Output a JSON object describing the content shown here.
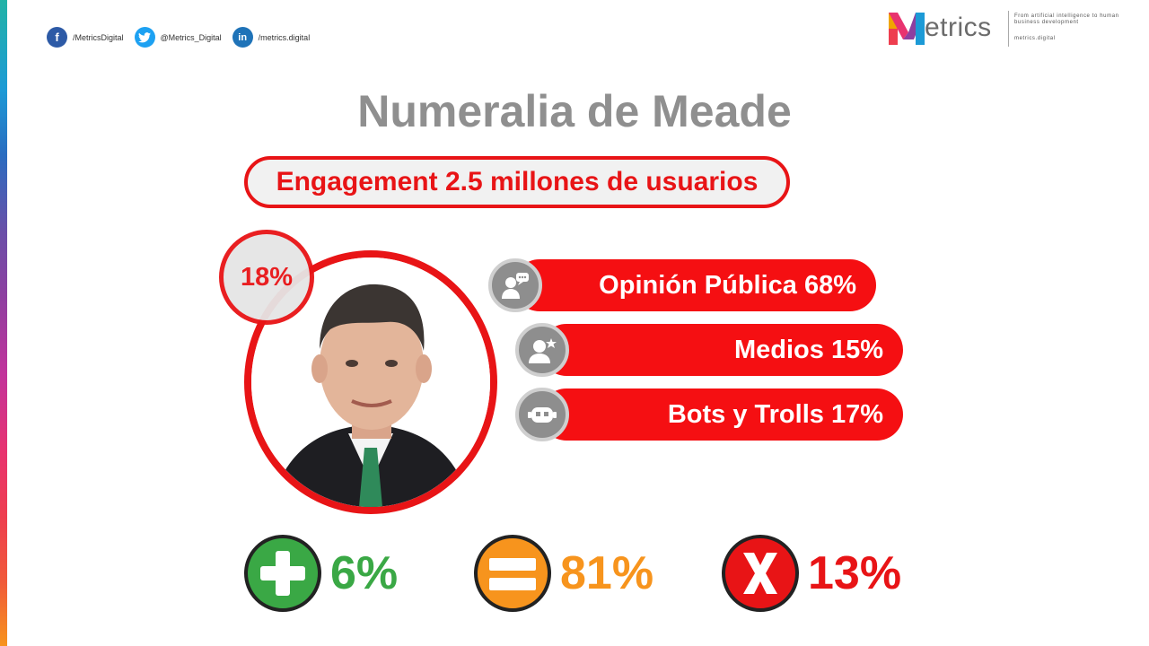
{
  "social": {
    "facebook": {
      "icon": "facebook-icon",
      "glyph": "f",
      "handle": "/MetricsDigital"
    },
    "twitter": {
      "icon": "twitter-icon",
      "handle": "@Metrics_Digital"
    },
    "linkedin": {
      "icon": "linkedin-icon",
      "glyph": "in",
      "handle": "/metrics.digital"
    }
  },
  "logo": {
    "wordmark": "etrics",
    "tagline": "From artificial intelligence to human business development",
    "url": "metrics.digital"
  },
  "title": "Numeralia de Meade",
  "engagement": "Engagement 2.5 millones de usuarios",
  "photo": {
    "badge": "18%",
    "fill_fraction": 0.18
  },
  "stats": [
    {
      "label": "Opinión Pública 68%",
      "icon": "public-opinion-icon"
    },
    {
      "label": "Medios 15%",
      "icon": "media-icon"
    },
    {
      "label": "Bots y Trolls 17%",
      "icon": "bot-icon"
    }
  ],
  "sentiment": {
    "positive": {
      "value": "6%",
      "icon": "plus-icon",
      "color": "#3aa845"
    },
    "neutral": {
      "value": "81%",
      "icon": "equals-icon",
      "color": "#f7941d"
    },
    "negative": {
      "value": "13%",
      "icon": "x-icon",
      "color": "#e81416"
    }
  },
  "colors": {
    "accent": "#e81416",
    "title": "#8f8f8f",
    "badge_bg": "#e5e5e5"
  }
}
